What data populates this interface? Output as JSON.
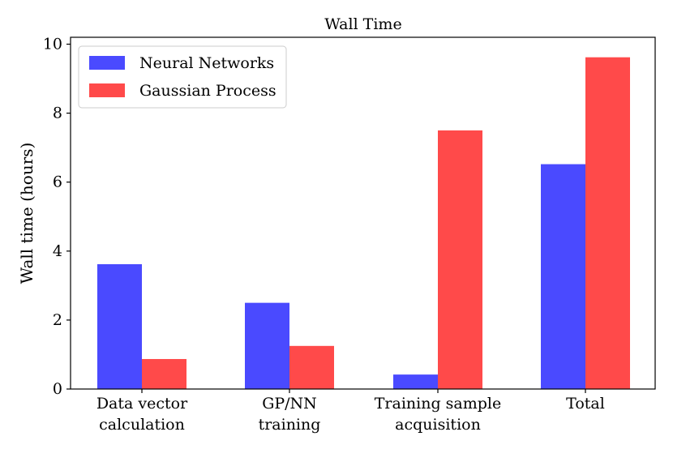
{
  "chart_data": {
    "type": "bar",
    "title": "Wall Time",
    "xlabel": "",
    "ylabel": "Wall time (hours)",
    "ylim": [
      0,
      10.2
    ],
    "yticks": [
      "0",
      "2",
      "4",
      "6",
      "8",
      "10"
    ],
    "categories": [
      [
        "Data vector",
        "calculation"
      ],
      [
        "GP/NN",
        "training"
      ],
      [
        "Training sample",
        "acquisition"
      ],
      [
        "Total"
      ]
    ],
    "series": [
      {
        "name": "Neural Networks",
        "color": "#4a4aff",
        "values": [
          3.62,
          2.5,
          0.42,
          6.52
        ]
      },
      {
        "name": "Gaussian Process",
        "color": "#ff4a4a",
        "values": [
          0.87,
          1.25,
          7.5,
          9.62
        ]
      }
    ],
    "legend_position": "top-left",
    "grid": false
  }
}
